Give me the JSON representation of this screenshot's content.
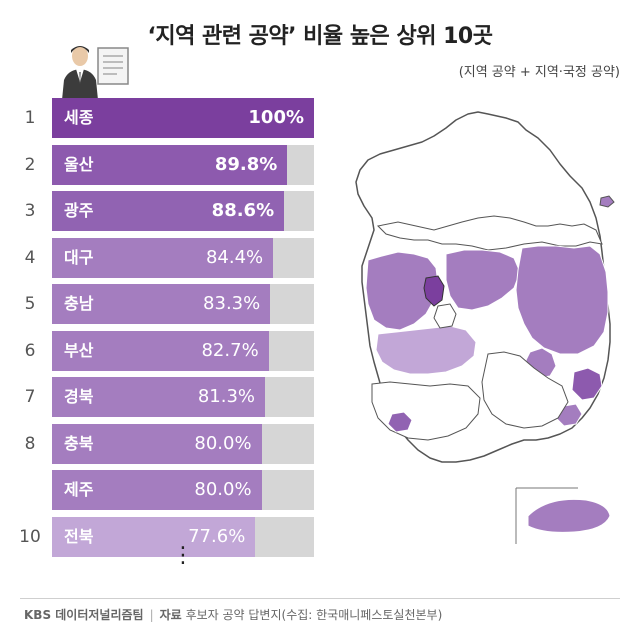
{
  "title": "‘지역 관련 공약’ 비율 높은 상위 10곳",
  "subtitle": "(지역 공약 + 지역·국정 공약)",
  "footer": {
    "brand": "KBS 데이터저널리즘팀",
    "source_label": "자료",
    "source_text": "후보자 공약 답변지(수집: 한국매니페스토실천본부)"
  },
  "chart_data": {
    "type": "bar",
    "title": "‘지역 관련 공약’ 비율 높은 상위 10곳",
    "subtitle": "(지역 공약 + 지역·국정 공약)",
    "xlim": [
      0,
      100
    ],
    "categories": [
      "세종",
      "울산",
      "광주",
      "대구",
      "충남",
      "부산",
      "경북",
      "충북",
      "제주",
      "전북"
    ],
    "ranks": [
      "1",
      "2",
      "3",
      "4",
      "5",
      "6",
      "7",
      "8",
      "",
      "10"
    ],
    "values": [
      100,
      89.8,
      88.6,
      84.4,
      83.3,
      82.7,
      81.3,
      80.0,
      80.0,
      77.6
    ],
    "value_labels": [
      "100%",
      "89.8%",
      "88.6%",
      "84.4%",
      "83.3%",
      "82.7%",
      "81.3%",
      "80.0%",
      "80.0%",
      "77.6%"
    ],
    "bar_colors": [
      "#7b3f9e",
      "#8d5aae",
      "#9163b2",
      "#a47dbf",
      "#a47dbf",
      "#a47dbf",
      "#a47dbf",
      "#a47dbf",
      "#a47dbf",
      "#c2a7d7"
    ],
    "track_color": "#d6d6d6"
  },
  "map_colors": {
    "outline": "#555555",
    "land": "#ffffff",
    "dark": "#7b3f9e",
    "mid": "#a47dbf",
    "light": "#c2a7d7"
  },
  "more_indicator": "⋮"
}
